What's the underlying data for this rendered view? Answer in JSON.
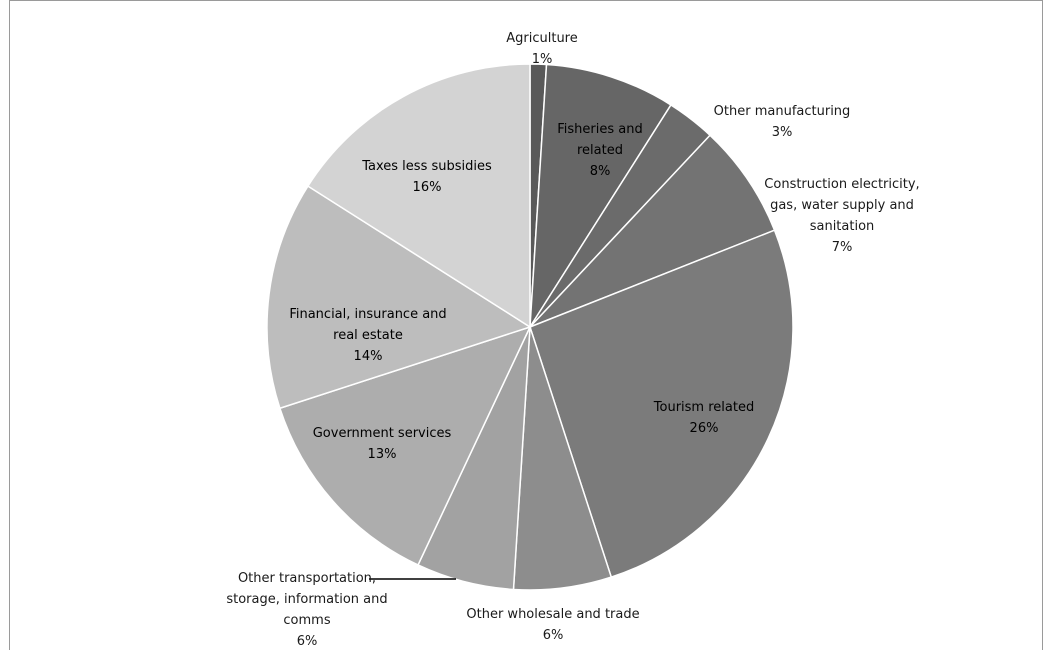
{
  "chart_data": {
    "type": "pie",
    "title": "",
    "start_angle_deg": 0,
    "direction": "clockwise",
    "slices": [
      {
        "label_lines": [
          "Agriculture"
        ],
        "pct_label": "1%",
        "value": 1,
        "color": "#595959"
      },
      {
        "label_lines": [
          "Fisheries and",
          "related"
        ],
        "pct_label": "8%",
        "value": 8,
        "color": "#666666"
      },
      {
        "label_lines": [
          "Other manufacturing"
        ],
        "pct_label": "3%",
        "value": 3,
        "color": "#6b6b6b"
      },
      {
        "label_lines": [
          "Construction electricity,",
          "gas, water supply and",
          "sanitation"
        ],
        "pct_label": "7%",
        "value": 7,
        "color": "#737373"
      },
      {
        "label_lines": [
          "Tourism related"
        ],
        "pct_label": "26%",
        "value": 26,
        "color": "#7b7b7b"
      },
      {
        "label_lines": [
          "Other wholesale and trade"
        ],
        "pct_label": "6%",
        "value": 6,
        "color": "#8d8d8d"
      },
      {
        "label_lines": [
          "Other transportation,",
          "storage, information and",
          "comms"
        ],
        "pct_label": "6%",
        "value": 6,
        "color": "#a2a2a2"
      },
      {
        "label_lines": [
          "Government services"
        ],
        "pct_label": "13%",
        "value": 13,
        "color": "#adadad"
      },
      {
        "label_lines": [
          "Financial, insurance and",
          "real estate"
        ],
        "pct_label": "14%",
        "value": 14,
        "color": "#bdbdbd"
      },
      {
        "label_lines": [
          "Taxes less subsidies"
        ],
        "pct_label": "16%",
        "value": 16,
        "color": "#d3d3d3"
      }
    ]
  }
}
